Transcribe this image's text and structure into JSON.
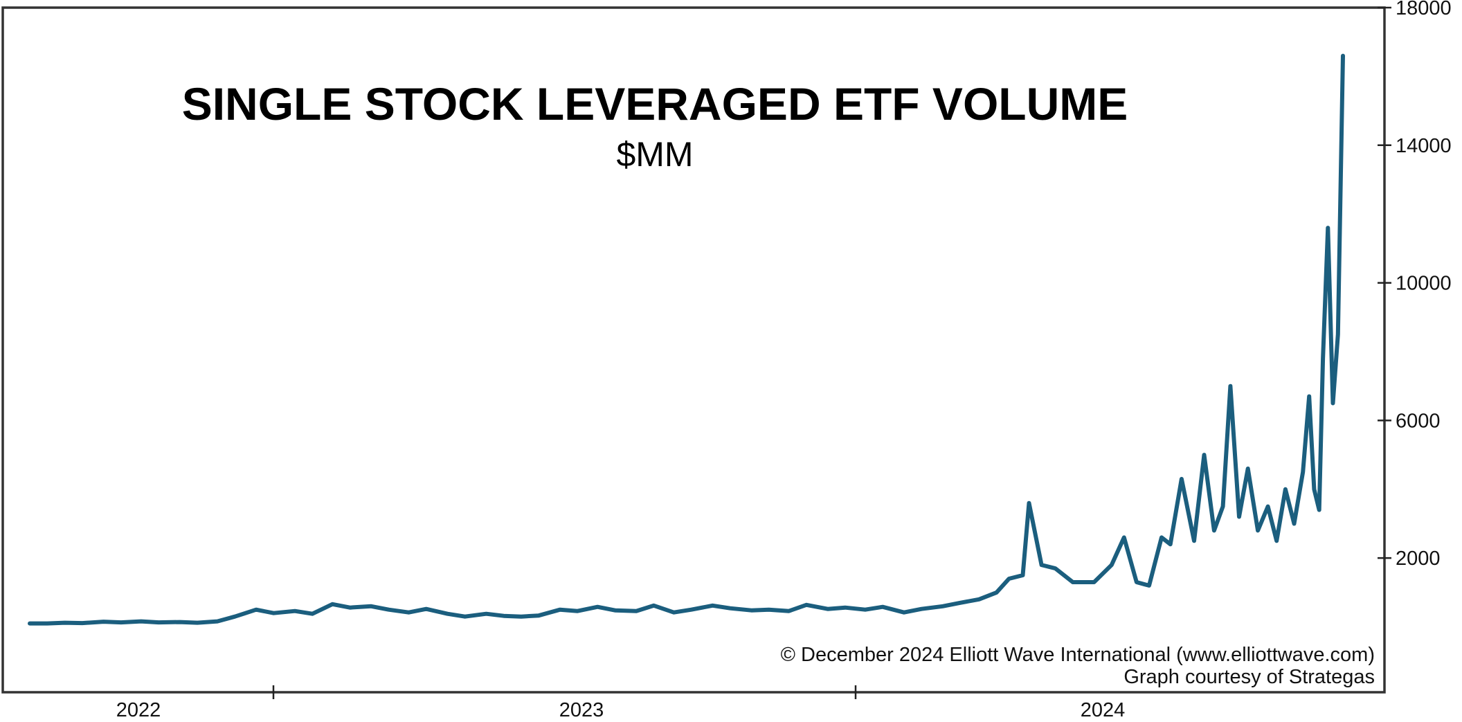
{
  "chart_data": {
    "type": "line",
    "title": "SINGLE STOCK LEVERAGED ETF VOLUME",
    "subtitle": "$MM",
    "xlabel": "",
    "ylabel": "",
    "x_tick_labels": [
      "2022",
      "2023",
      "2024"
    ],
    "y_ticks": [
      2000,
      6000,
      10000,
      14000,
      18000
    ],
    "y_tick_labels": [
      "2000",
      "6000",
      "10000",
      "14000",
      "18000"
    ],
    "ylim": [
      -1900,
      18000
    ],
    "xlim": [
      "2022-02-01",
      "2024-12-20"
    ],
    "grid": false,
    "line_color": "#1b5e7e",
    "series": [
      {
        "points": [
          [
            "2022-02-01",
            100
          ],
          [
            "2022-02-15",
            100
          ],
          [
            "2022-03-01",
            120
          ],
          [
            "2022-03-15",
            110
          ],
          [
            "2022-04-01",
            150
          ],
          [
            "2022-04-15",
            130
          ],
          [
            "2022-05-01",
            160
          ],
          [
            "2022-05-15",
            130
          ],
          [
            "2022-06-01",
            140
          ],
          [
            "2022-06-15",
            120
          ],
          [
            "2022-07-01",
            160
          ],
          [
            "2022-07-15",
            300
          ],
          [
            "2022-08-01",
            500
          ],
          [
            "2022-08-15",
            400
          ],
          [
            "2022-09-01",
            460
          ],
          [
            "2022-09-15",
            380
          ],
          [
            "2022-10-01",
            660
          ],
          [
            "2022-10-15",
            560
          ],
          [
            "2022-11-01",
            600
          ],
          [
            "2022-11-15",
            500
          ],
          [
            "2022-12-01",
            420
          ],
          [
            "2022-12-15",
            520
          ],
          [
            "2023-01-01",
            380
          ],
          [
            "2023-01-15",
            300
          ],
          [
            "2023-02-01",
            380
          ],
          [
            "2023-02-15",
            320
          ],
          [
            "2023-03-01",
            300
          ],
          [
            "2023-03-15",
            330
          ],
          [
            "2023-04-01",
            500
          ],
          [
            "2023-04-15",
            460
          ],
          [
            "2023-05-01",
            580
          ],
          [
            "2023-05-15",
            480
          ],
          [
            "2023-06-01",
            460
          ],
          [
            "2023-06-15",
            620
          ],
          [
            "2023-07-01",
            420
          ],
          [
            "2023-07-15",
            500
          ],
          [
            "2023-08-01",
            620
          ],
          [
            "2023-08-15",
            540
          ],
          [
            "2023-09-01",
            480
          ],
          [
            "2023-09-15",
            500
          ],
          [
            "2023-10-01",
            460
          ],
          [
            "2023-10-15",
            640
          ],
          [
            "2023-11-01",
            520
          ],
          [
            "2023-11-15",
            560
          ],
          [
            "2023-12-01",
            500
          ],
          [
            "2023-12-15",
            580
          ],
          [
            "2024-01-01",
            420
          ],
          [
            "2024-01-15",
            520
          ],
          [
            "2024-02-01",
            600
          ],
          [
            "2024-02-15",
            700
          ],
          [
            "2024-03-01",
            800
          ],
          [
            "2024-03-15",
            1000
          ],
          [
            "2024-03-25",
            1400
          ],
          [
            "2024-04-05",
            1500
          ],
          [
            "2024-04-10",
            3600
          ],
          [
            "2024-04-20",
            1800
          ],
          [
            "2024-05-01",
            1700
          ],
          [
            "2024-05-15",
            1300
          ],
          [
            "2024-06-01",
            1300
          ],
          [
            "2024-06-15",
            1800
          ],
          [
            "2024-06-25",
            2600
          ],
          [
            "2024-07-05",
            1300
          ],
          [
            "2024-07-15",
            1200
          ],
          [
            "2024-07-25",
            2600
          ],
          [
            "2024-08-01",
            2400
          ],
          [
            "2024-08-10",
            4300
          ],
          [
            "2024-08-20",
            2500
          ],
          [
            "2024-08-28",
            5000
          ],
          [
            "2024-09-05",
            2800
          ],
          [
            "2024-09-12",
            3500
          ],
          [
            "2024-09-18",
            7000
          ],
          [
            "2024-09-25",
            3200
          ],
          [
            "2024-10-02",
            4600
          ],
          [
            "2024-10-10",
            2800
          ],
          [
            "2024-10-18",
            3500
          ],
          [
            "2024-10-25",
            2500
          ],
          [
            "2024-11-01",
            4000
          ],
          [
            "2024-11-08",
            3000
          ],
          [
            "2024-11-15",
            4500
          ],
          [
            "2024-11-20",
            6700
          ],
          [
            "2024-11-24",
            4000
          ],
          [
            "2024-11-28",
            3400
          ],
          [
            "2024-12-01",
            7800
          ],
          [
            "2024-12-05",
            11600
          ],
          [
            "2024-12-09",
            6500
          ],
          [
            "2024-12-13",
            8500
          ],
          [
            "2024-12-17",
            16600
          ]
        ]
      }
    ]
  },
  "credits": {
    "line1": "© December 2024 Elliott Wave International (www.elliottwave.com)",
    "line2": "Graph courtesy of Strategas"
  }
}
